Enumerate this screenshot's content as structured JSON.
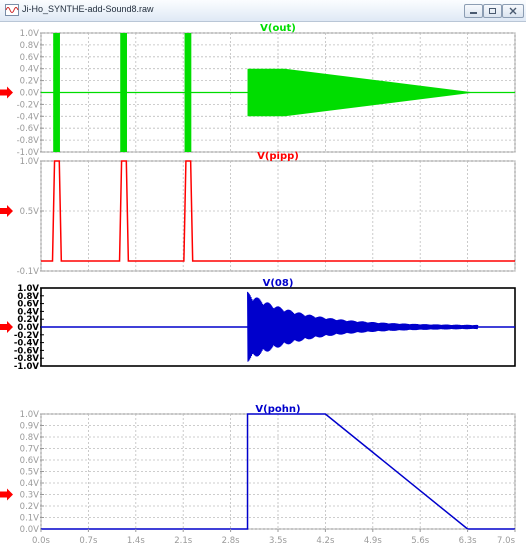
{
  "window": {
    "title": "Ji-Ho_SYNTHE-add-Sound8.raw",
    "icon": "waveform-icon",
    "controls": [
      "minimize-icon",
      "restore-icon",
      "close-icon"
    ]
  },
  "chart_data": [
    {
      "type": "line",
      "title": "V(out)",
      "color": "#00dd00",
      "grid": true,
      "active": false,
      "xlim": [
        0,
        7.0
      ],
      "ylim": [
        -1.0,
        1.0
      ],
      "yticks": [
        "1.0V",
        "0.8V",
        "0.6V",
        "0.4V",
        "0.2V",
        "0.0V",
        "-0.2V",
        "-0.4V",
        "-0.6V",
        "-0.8V",
        "-1.0V"
      ],
      "ytick_values": [
        1.0,
        0.8,
        0.6,
        0.4,
        0.2,
        0.0,
        -0.2,
        -0.4,
        -0.6,
        -0.8,
        -1.0
      ],
      "bursts": [
        {
          "x_start": 0.18,
          "x_end": 0.28,
          "amplitude": 1.0
        },
        {
          "x_start": 1.17,
          "x_end": 1.27,
          "amplitude": 1.0
        },
        {
          "x_start": 2.12,
          "x_end": 2.22,
          "amplitude": 1.0
        }
      ],
      "tone": {
        "x_start": 3.05,
        "x_end": 6.4,
        "amplitude_start": 0.4,
        "amplitude_hold_until": 3.6,
        "amplitude_end": 0.0
      }
    },
    {
      "type": "line",
      "title": "V(pipp)",
      "color": "#ff0000",
      "grid": true,
      "active": false,
      "xlim": [
        0,
        7.0
      ],
      "ylim": [
        -0.1,
        1.0
      ],
      "yticks": [
        "1.0V",
        "0.5V",
        "-0.1V"
      ],
      "ytick_values": [
        1.0,
        0.5,
        -0.1
      ],
      "x": [
        0,
        0.17,
        0.2,
        0.27,
        0.3,
        1.16,
        1.19,
        1.26,
        1.29,
        2.11,
        2.14,
        2.21,
        2.24,
        7.0
      ],
      "y": [
        0,
        0,
        1.0,
        1.0,
        0,
        0,
        1.0,
        1.0,
        0,
        0,
        1.0,
        1.0,
        0,
        0
      ]
    },
    {
      "type": "line",
      "title": "V(08)",
      "color": "#0000cc",
      "grid": false,
      "active": true,
      "xlim": [
        0,
        7.0
      ],
      "ylim": [
        -1.0,
        1.0
      ],
      "yticks": [
        "1.0V",
        "0.8V",
        "0.6V",
        "0.4V",
        "0.2V",
        "0.0V",
        "-0.2V",
        "-0.4V",
        "-0.6V",
        "-0.8V",
        "-1.0V"
      ],
      "ytick_values": [
        1.0,
        0.8,
        0.6,
        0.4,
        0.2,
        0.0,
        -0.2,
        -0.4,
        -0.6,
        -0.8,
        -1.0
      ],
      "burst": {
        "x_start": 3.05,
        "x_end": 6.45,
        "peak": 0.9,
        "decay_to": 0.04,
        "beats": 22
      }
    },
    {
      "type": "line",
      "title": "V(pohn)",
      "color": "#0000cc",
      "grid": true,
      "active": false,
      "xlim": [
        0,
        7.0
      ],
      "ylim": [
        0,
        1.0
      ],
      "yticks": [
        "1.0V",
        "0.9V",
        "0.8V",
        "0.7V",
        "0.6V",
        "0.5V",
        "0.4V",
        "0.3V",
        "0.2V",
        "0.1V",
        "0.0V"
      ],
      "ytick_values": [
        1.0,
        0.9,
        0.8,
        0.7,
        0.6,
        0.5,
        0.4,
        0.3,
        0.2,
        0.1,
        0.0
      ],
      "x": [
        0,
        3.05,
        3.05,
        4.2,
        6.3,
        7.0
      ],
      "y": [
        0,
        0,
        1.0,
        1.0,
        0,
        0
      ]
    }
  ],
  "x_axis": {
    "ticks": [
      "0.0s",
      "0.7s",
      "1.4s",
      "2.1s",
      "2.8s",
      "3.5s",
      "4.2s",
      "4.9s",
      "5.6s",
      "6.3s",
      "7.0s"
    ],
    "tick_values": [
      0.0,
      0.7,
      1.4,
      2.1,
      2.8,
      3.5,
      4.2,
      4.9,
      5.6,
      6.3,
      7.0
    ]
  },
  "markers": {
    "color": "#ff0000",
    "count": 4,
    "shape": "arrow-right"
  }
}
